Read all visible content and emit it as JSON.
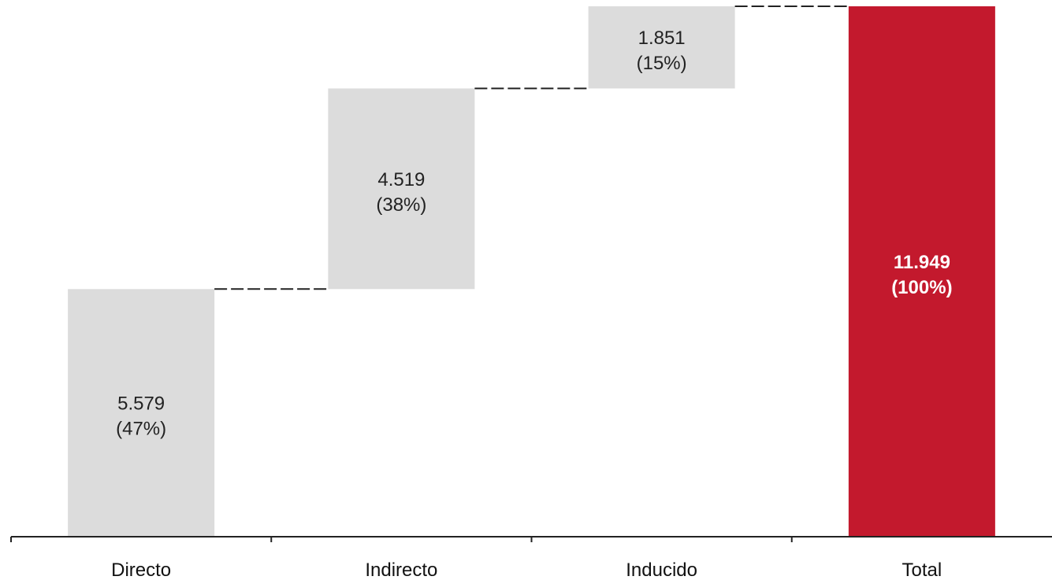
{
  "chart_data": {
    "type": "bar",
    "subtype": "waterfall",
    "categories": [
      "Directo",
      "Indirecto",
      "Inducido",
      "Total"
    ],
    "values": [
      5579,
      4519,
      1851,
      11949
    ],
    "value_labels": [
      "5.579",
      "4.519",
      "1.851",
      "11.949"
    ],
    "percent_labels": [
      "(47%)",
      "(38%)",
      "(15%)",
      "(100%)"
    ],
    "is_total": [
      false,
      false,
      false,
      true
    ],
    "title": "",
    "xlabel": "",
    "ylabel": "",
    "ylim": [
      0,
      11949
    ],
    "grid": false,
    "legend": "none",
    "colors": {
      "increment": "#dcdcdc",
      "total": "#c3192d",
      "connector": "#222222",
      "axis": "#222222"
    }
  }
}
